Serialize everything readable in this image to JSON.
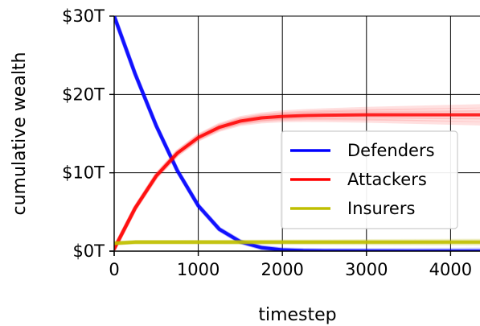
{
  "chart_data": {
    "type": "line",
    "title": "",
    "xlabel": "timestep",
    "ylabel": "cumulative wealth",
    "xlim": [
      0,
      4350
    ],
    "ylim": [
      0,
      30
    ],
    "grid": true,
    "legend_position": "center-right",
    "x_ticks": [
      0,
      1000,
      2000,
      3000,
      4000
    ],
    "x_tick_labels": [
      "0",
      "1000",
      "2000",
      "3000",
      "4000"
    ],
    "y_ticks": [
      0,
      10,
      20,
      30
    ],
    "y_tick_labels": [
      "$0T",
      "$10T",
      "$20T",
      "$30T"
    ],
    "x": [
      0,
      250,
      500,
      750,
      1000,
      1250,
      1500,
      1750,
      2000,
      2250,
      2500,
      3000,
      3500,
      4000,
      4350
    ],
    "series": [
      {
        "name": "Defenders",
        "color": "#0000ff",
        "values": [
          30,
          22.6,
          16.0,
          10.3,
          5.8,
          2.8,
          1.2,
          0.45,
          0.15,
          0.06,
          0.03,
          0.01,
          0.0,
          0.0,
          0.0
        ]
      },
      {
        "name": "Attackers",
        "color": "#ff0000",
        "values": [
          0.3,
          5.5,
          9.6,
          12.5,
          14.5,
          15.8,
          16.6,
          17.0,
          17.2,
          17.3,
          17.35,
          17.4,
          17.4,
          17.4,
          17.4
        ]
      },
      {
        "name": "Insurers",
        "color": "#bfbf00",
        "values": [
          1.0,
          1.15,
          1.15,
          1.15,
          1.15,
          1.15,
          1.15,
          1.15,
          1.15,
          1.15,
          1.15,
          1.15,
          1.15,
          1.15,
          1.15
        ]
      }
    ]
  }
}
